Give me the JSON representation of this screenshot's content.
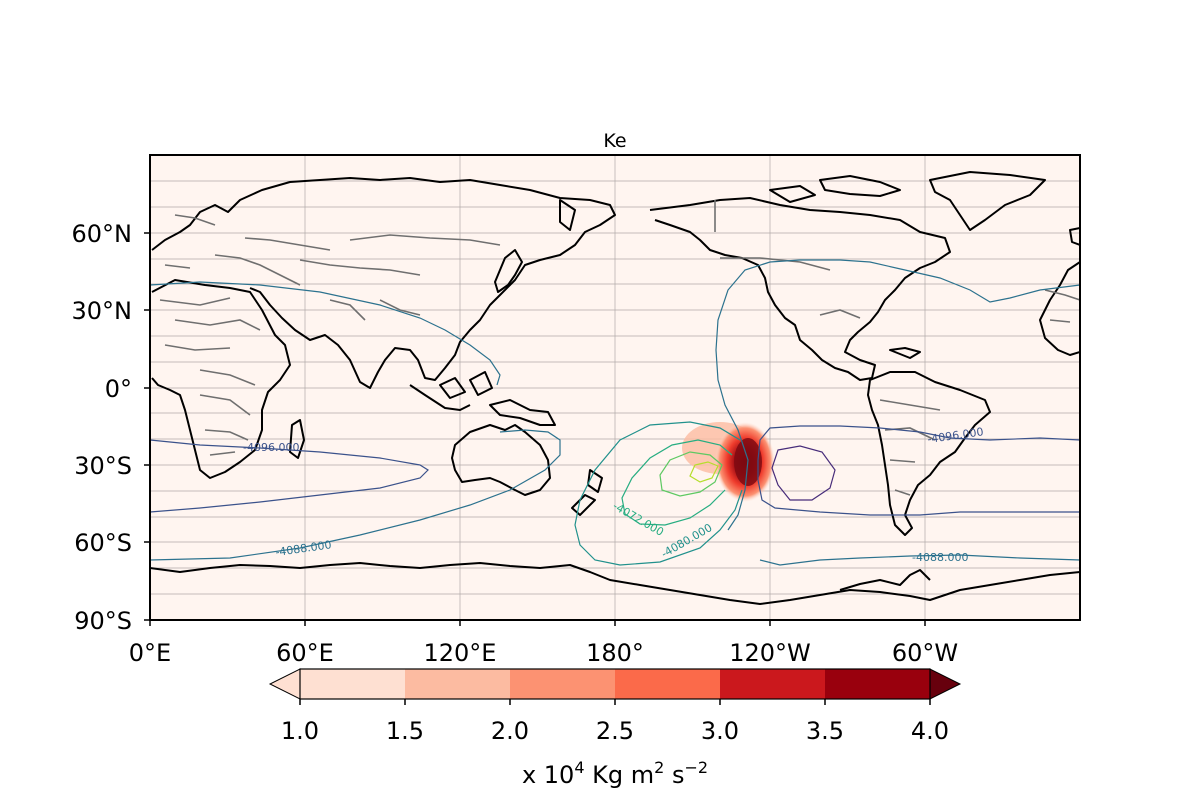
{
  "map": {
    "title": "Ke",
    "lat_ticks": [
      "60°N",
      "30°N",
      "0°",
      "30°S",
      "60°S",
      "90°S"
    ],
    "lon_ticks": [
      "0°E",
      "60°E",
      "120°E",
      "180°",
      "120°W",
      "60°W"
    ],
    "contour_labels": [
      {
        "text": "-4096.000",
        "color": "#3b528b"
      },
      {
        "text": "-4096.000",
        "color": "#3b528b"
      },
      {
        "text": "-4088.000",
        "color": "#2c728e"
      },
      {
        "text": "-4088.000",
        "color": "#2c728e"
      },
      {
        "text": "-4072.000",
        "color": "#27ad81"
      },
      {
        "text": "-4080.000",
        "color": "#21918c"
      }
    ],
    "colors": {
      "ocean_background": "#fff5f0",
      "coastline": "#000000",
      "borders": "#6f6f6f"
    }
  },
  "colorbar": {
    "ticks": [
      "1.0",
      "1.5",
      "2.0",
      "2.5",
      "3.0",
      "3.5",
      "4.0"
    ],
    "unit_prefix": "x 10",
    "unit_exp": "4",
    "unit_mid": " Kg m",
    "unit_exp2": "2",
    "unit_mid2": " s",
    "unit_exp3": "−2",
    "colors": [
      "#fee0d2",
      "#fcbba1",
      "#fc9272",
      "#fb6a4a",
      "#ef3b2c",
      "#cb181d",
      "#99000d",
      "#67000d"
    ]
  }
}
